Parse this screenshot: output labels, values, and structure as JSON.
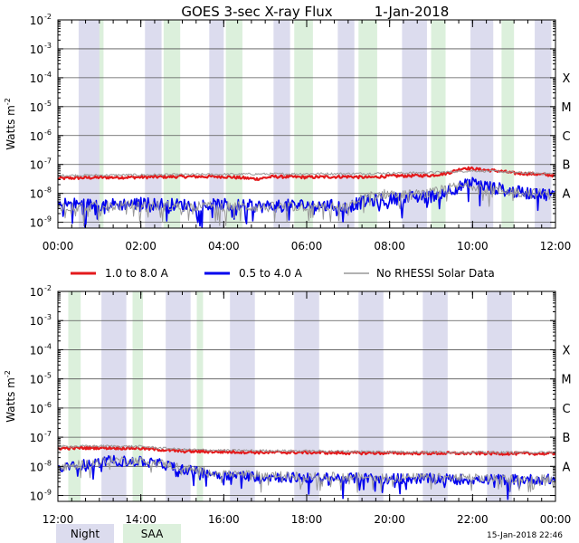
{
  "title": "GOES 3-sec X-ray Flux",
  "date": "1-Jan-2018",
  "timestamp": "15-Jan-2018 22:46",
  "colors": {
    "long": "#e31a1c",
    "short": "#0000ee",
    "gray": "#999999",
    "night": "#dcdcee",
    "saa": "#dcf0dc",
    "grid": "#555555"
  },
  "legend": {
    "long_label": "1.0 to 8.0 A",
    "short_label": "0.5 to 4.0 A",
    "gray_label": "No RHESSI Solar Data",
    "night_label": "Night",
    "saa_label": "SAA"
  },
  "chart_data": [
    {
      "type": "line",
      "panel": "top",
      "ylabel_base": "Watts m",
      "ylabel_exp": "-2",
      "yscale": "log",
      "ylim_exp": [
        -9.2,
        -2
      ],
      "ytick_exponents": [
        -2,
        -3,
        -4,
        -5,
        -6,
        -7,
        -8,
        -9
      ],
      "xlim_hours": [
        0,
        12
      ],
      "xticks": [
        {
          "h": 0,
          "label": "00:00"
        },
        {
          "h": 2,
          "label": "02:00"
        },
        {
          "h": 4,
          "label": "04:00"
        },
        {
          "h": 6,
          "label": "06:00"
        },
        {
          "h": 8,
          "label": "08:00"
        },
        {
          "h": 10,
          "label": "10:00"
        },
        {
          "h": 12,
          "label": "12:00"
        }
      ],
      "class_labels": [
        {
          "label": "X",
          "exp": -4
        },
        {
          "label": "M",
          "exp": -5
        },
        {
          "label": "C",
          "exp": -6
        },
        {
          "label": "B",
          "exp": -7
        },
        {
          "label": "A",
          "exp": -8
        }
      ],
      "night_hours": [
        [
          0.5,
          1.05
        ],
        [
          2.1,
          2.5
        ],
        [
          3.65,
          4.0
        ],
        [
          5.2,
          5.6
        ],
        [
          6.75,
          7.15
        ],
        [
          8.3,
          8.9
        ],
        [
          9.95,
          10.5
        ],
        [
          11.5,
          11.9
        ]
      ],
      "saa_hours": [
        [
          1.0,
          1.1
        ],
        [
          2.55,
          2.95
        ],
        [
          4.05,
          4.45
        ],
        [
          5.7,
          6.15
        ],
        [
          7.25,
          7.7
        ],
        [
          9.0,
          9.35
        ],
        [
          10.7,
          11.0
        ]
      ],
      "series": [
        {
          "name": "1.0 to 8.0 A",
          "color_key": "long",
          "noise": 0.05,
          "hours": [
            0,
            1,
            2,
            3,
            4,
            4.8,
            5.2,
            6,
            7,
            7.5,
            8,
            9,
            9.4,
            9.8,
            10.2,
            10.6,
            11,
            11.5,
            12
          ],
          "log_values": [
            -7.48,
            -7.45,
            -7.44,
            -7.42,
            -7.42,
            -7.5,
            -7.42,
            -7.44,
            -7.42,
            -7.45,
            -7.4,
            -7.38,
            -7.3,
            -7.12,
            -7.18,
            -7.22,
            -7.3,
            -7.33,
            -7.38
          ]
        },
        {
          "name": "No RHESSI Solar Data (long)",
          "color_key": "gray",
          "noise": 0.04,
          "hours": [
            0,
            2,
            4,
            6,
            7,
            8,
            9,
            9.5,
            10,
            10.6,
            11,
            12
          ],
          "log_values": [
            -7.38,
            -7.36,
            -7.34,
            -7.32,
            -7.32,
            -7.3,
            -7.28,
            -7.25,
            -7.22,
            -7.24,
            -7.28,
            -7.32
          ]
        },
        {
          "name": "0.5 to 4.0 A",
          "color_key": "short",
          "noise": 0.22,
          "spikes": 0.7,
          "hours": [
            0,
            1,
            2,
            3,
            4,
            5,
            6,
            7,
            7.35,
            8,
            8.5,
            9,
            9.5,
            10,
            10.5,
            11,
            12
          ],
          "log_values": [
            -8.35,
            -8.4,
            -8.35,
            -8.4,
            -8.4,
            -8.45,
            -8.4,
            -8.45,
            -8.3,
            -8.2,
            -8.15,
            -8.1,
            -7.85,
            -7.65,
            -7.8,
            -7.95,
            -8.05
          ]
        },
        {
          "name": "No RHESSI Solar Data (short)",
          "color_key": "gray",
          "noise": 0.18,
          "spikes": 0.6,
          "hours": [
            0,
            1,
            2,
            3,
            4,
            5,
            6,
            7,
            7.35,
            8,
            8.5,
            9,
            9.5,
            10,
            10.5,
            11,
            12
          ],
          "log_values": [
            -8.45,
            -8.45,
            -8.42,
            -8.45,
            -8.45,
            -8.48,
            -8.45,
            -8.5,
            -8.15,
            -8.0,
            -8.05,
            -8.0,
            -7.8,
            -7.72,
            -7.85,
            -7.95,
            -8.05
          ]
        }
      ]
    },
    {
      "type": "line",
      "panel": "bottom",
      "ylabel_base": "Watts m",
      "ylabel_exp": "-2",
      "yscale": "log",
      "ylim_exp": [
        -9.2,
        -2
      ],
      "ytick_exponents": [
        -2,
        -3,
        -4,
        -5,
        -6,
        -7,
        -8,
        -9
      ],
      "xlim_hours": [
        12,
        24
      ],
      "xticks": [
        {
          "h": 12,
          "label": "12:00"
        },
        {
          "h": 14,
          "label": "14:00"
        },
        {
          "h": 16,
          "label": "16:00"
        },
        {
          "h": 18,
          "label": "18:00"
        },
        {
          "h": 20,
          "label": "20:00"
        },
        {
          "h": 22,
          "label": "22:00"
        },
        {
          "h": 24,
          "label": "00:00"
        }
      ],
      "class_labels": [
        {
          "label": "X",
          "exp": -4
        },
        {
          "label": "M",
          "exp": -5
        },
        {
          "label": "C",
          "exp": -6
        },
        {
          "label": "B",
          "exp": -7
        },
        {
          "label": "A",
          "exp": -8
        }
      ],
      "night_hours": [
        [
          13.05,
          13.65
        ],
        [
          14.6,
          15.2
        ],
        [
          16.15,
          16.75
        ],
        [
          17.7,
          18.3
        ],
        [
          19.25,
          19.85
        ],
        [
          20.8,
          21.4
        ],
        [
          22.35,
          22.95
        ]
      ],
      "saa_hours": [
        [
          12.25,
          12.55
        ],
        [
          13.8,
          14.05
        ],
        [
          15.35,
          15.5
        ]
      ],
      "series": [
        {
          "name": "1.0 to 8.0 A",
          "color_key": "long",
          "noise": 0.05,
          "hours": [
            12,
            13,
            14,
            15,
            16,
            17,
            18,
            19,
            20,
            21,
            22,
            23,
            24
          ],
          "log_values": [
            -7.38,
            -7.36,
            -7.38,
            -7.48,
            -7.5,
            -7.52,
            -7.52,
            -7.54,
            -7.54,
            -7.55,
            -7.55,
            -7.56,
            -7.56
          ]
        },
        {
          "name": "No RHESSI Solar Data (long)",
          "color_key": "gray",
          "noise": 0.04,
          "hours": [
            12,
            13,
            14,
            15,
            16,
            18,
            20,
            22,
            24
          ],
          "log_values": [
            -7.32,
            -7.3,
            -7.32,
            -7.42,
            -7.45,
            -7.47,
            -7.5,
            -7.52,
            -7.52
          ]
        },
        {
          "name": "0.5 to 4.0 A",
          "color_key": "short",
          "noise": 0.18,
          "spikes": 0.55,
          "hours": [
            12,
            12.7,
            13.3,
            14.1,
            14.6,
            15.2,
            16,
            17,
            18,
            19,
            20,
            21,
            22,
            23,
            24
          ],
          "log_values": [
            -8.1,
            -7.92,
            -7.8,
            -7.85,
            -7.95,
            -8.15,
            -8.3,
            -8.35,
            -8.4,
            -8.4,
            -8.42,
            -8.42,
            -8.45,
            -8.45,
            -8.45
          ]
        },
        {
          "name": "No RHESSI Solar Data (short)",
          "color_key": "gray",
          "noise": 0.15,
          "spikes": 0.5,
          "hours": [
            12,
            12.7,
            13.3,
            14.1,
            14.6,
            15.2,
            16,
            17,
            18,
            19,
            20,
            21,
            22,
            23,
            24
          ],
          "log_values": [
            -8.05,
            -7.9,
            -7.78,
            -7.82,
            -7.92,
            -8.1,
            -8.25,
            -8.3,
            -8.35,
            -8.35,
            -8.38,
            -8.38,
            -8.4,
            -8.42,
            -8.42
          ]
        }
      ]
    }
  ]
}
